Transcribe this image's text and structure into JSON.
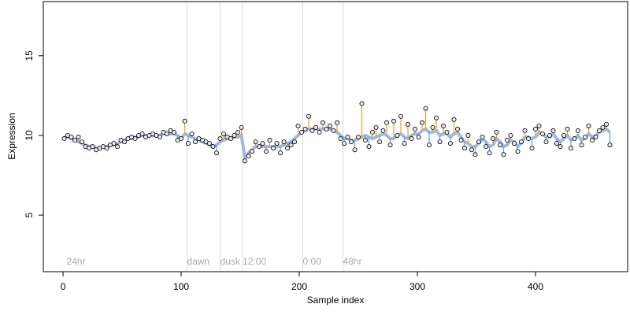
{
  "chart_data": {
    "type": "scatter",
    "x_label": "Sample index",
    "y_label": "Expression",
    "xlim": [
      -16.7,
      478
    ],
    "ylim": [
      1.45,
      18.4
    ],
    "xticks": [
      0,
      100,
      200,
      300,
      400
    ],
    "yticks": [
      5,
      10,
      15
    ],
    "x": [
      1,
      4,
      7,
      10,
      13,
      16,
      19,
      22,
      25,
      28,
      31,
      34,
      37,
      40,
      43,
      46,
      49,
      52,
      55,
      58,
      61,
      64,
      67,
      70,
      73,
      76,
      79,
      82,
      85,
      88,
      91,
      94,
      97,
      100,
      103,
      106,
      109,
      112,
      115,
      118,
      121,
      124,
      127,
      130,
      133,
      136,
      139,
      142,
      145,
      148,
      151,
      154,
      157,
      160,
      163,
      166,
      169,
      172,
      175,
      178,
      181,
      184,
      187,
      190,
      193,
      196,
      199,
      202,
      205,
      208,
      211,
      214,
      217,
      220,
      223,
      226,
      229,
      232,
      235,
      238,
      241,
      244,
      247,
      250,
      253,
      256,
      259,
      262,
      265,
      268,
      271,
      274,
      277,
      280,
      283,
      286,
      289,
      292,
      295,
      298,
      301,
      304,
      307,
      310,
      313,
      316,
      319,
      322,
      325,
      328,
      331,
      334,
      337,
      340,
      343,
      346,
      349,
      352,
      355,
      358,
      361,
      364,
      367,
      370,
      373,
      376,
      379,
      382,
      385,
      388,
      391,
      394,
      397,
      400,
      403,
      406,
      409,
      412,
      415,
      418,
      421,
      424,
      427,
      430,
      433,
      436,
      439,
      442,
      445,
      448,
      451,
      454,
      457,
      460,
      463
    ],
    "values": [
      9.8,
      10.0,
      9.9,
      9.7,
      9.9,
      9.6,
      9.3,
      9.2,
      9.3,
      9.1,
      9.2,
      9.3,
      9.2,
      9.4,
      9.5,
      9.3,
      9.7,
      9.6,
      9.8,
      9.9,
      9.8,
      10.0,
      10.1,
      9.9,
      10.0,
      10.1,
      10.0,
      9.9,
      10.2,
      10.1,
      10.3,
      10.2,
      9.7,
      9.8,
      10.9,
      9.5,
      10.1,
      9.6,
      9.8,
      9.7,
      9.6,
      9.5,
      9.3,
      8.9,
      9.8,
      10.1,
      9.9,
      9.8,
      10.0,
      10.2,
      10.5,
      8.4,
      8.7,
      9.0,
      9.6,
      9.3,
      9.5,
      9.0,
      9.7,
      9.2,
      9.5,
      8.9,
      9.6,
      9.2,
      9.4,
      9.6,
      10.6,
      10.2,
      10.4,
      11.2,
      10.3,
      10.5,
      10.2,
      10.8,
      10.4,
      10.6,
      10.3,
      10.8,
      9.8,
      9.5,
      9.9,
      9.6,
      9.1,
      9.9,
      12.0,
      9.7,
      9.3,
      10.2,
      10.5,
      9.6,
      10.3,
      10.8,
      9.4,
      10.9,
      10.0,
      11.2,
      9.5,
      10.7,
      9.8,
      10.4,
      9.9,
      10.8,
      11.7,
      9.4,
      10.5,
      11.1,
      9.6,
      10.6,
      10.2,
      9.5,
      11.0,
      10.4,
      9.7,
      9.2,
      10.0,
      9.1,
      8.8,
      9.6,
      9.9,
      9.3,
      8.9,
      9.8,
      10.2,
      9.4,
      8.8,
      9.7,
      10.0,
      9.5,
      9.0,
      9.6,
      10.3,
      9.8,
      9.2,
      10.4,
      10.6,
      10.1,
      9.6,
      10.0,
      10.3,
      9.5,
      9.3,
      10.0,
      10.4,
      9.2,
      9.8,
      10.3,
      9.4,
      9.9,
      10.6,
      9.7,
      9.9,
      10.3,
      10.5,
      10.7,
      9.4
    ],
    "fit": [
      9.9,
      9.9,
      9.8,
      9.7,
      9.6,
      9.5,
      9.4,
      9.3,
      9.3,
      9.2,
      9.2,
      9.3,
      9.3,
      9.4,
      9.4,
      9.5,
      9.6,
      9.7,
      9.8,
      9.8,
      9.9,
      9.9,
      10.0,
      10.0,
      10.0,
      10.0,
      10.0,
      10.0,
      10.1,
      10.1,
      10.1,
      10.1,
      10.0,
      9.8,
      10.1,
      10.0,
      9.9,
      9.8,
      9.7,
      9.6,
      9.5,
      9.4,
      9.3,
      9.4,
      9.6,
      9.7,
      9.8,
      9.8,
      9.9,
      9.9,
      10.0,
      8.6,
      8.9,
      9.1,
      9.3,
      9.3,
      9.3,
      9.3,
      9.3,
      9.3,
      9.3,
      9.3,
      9.4,
      9.5,
      9.6,
      9.8,
      10.0,
      10.2,
      10.3,
      10.4,
      10.4,
      10.4,
      10.4,
      10.4,
      10.4,
      10.4,
      10.3,
      10.2,
      10.0,
      9.8,
      9.8,
      9.7,
      9.7,
      9.8,
      9.9,
      10.0,
      9.9,
      9.8,
      9.9,
      10.0,
      10.1,
      10.0,
      9.8,
      9.8,
      10.0,
      10.1,
      9.9,
      9.8,
      10.0,
      10.1,
      10.1,
      10.3,
      10.4,
      10.2,
      10.2,
      10.3,
      10.0,
      10.1,
      10.1,
      9.9,
      10.1,
      10.2,
      9.9,
      9.6,
      9.5,
      9.3,
      9.3,
      9.5,
      9.8,
      9.6,
      9.3,
      9.4,
      9.8,
      9.6,
      9.3,
      9.4,
      9.7,
      9.6,
      9.3,
      9.5,
      9.9,
      9.9,
      9.8,
      9.9,
      10.2,
      10.1,
      9.9,
      9.9,
      10.1,
      9.8,
      9.6,
      9.8,
      10.0,
      9.7,
      9.8,
      10.0,
      9.7,
      9.8,
      10.1,
      9.9,
      10.0,
      10.2,
      10.3,
      10.4,
      10.2
    ],
    "colors": {
      "point": "#e8e8ee",
      "fit": "#a4b8dc",
      "above": "#e6a030",
      "below": "#6f9be0",
      "vline": "#dddddd"
    },
    "vlines": [
      105,
      133,
      152,
      203,
      237
    ],
    "annotations": [
      {
        "x": 3,
        "label": "24hr"
      },
      {
        "x": 105,
        "label": "dawn"
      },
      {
        "x": 133,
        "label": "dusk"
      },
      {
        "x": 152,
        "label": "12:00"
      },
      {
        "x": 203,
        "label": "0:00"
      },
      {
        "x": 237,
        "label": "48hr"
      }
    ]
  }
}
